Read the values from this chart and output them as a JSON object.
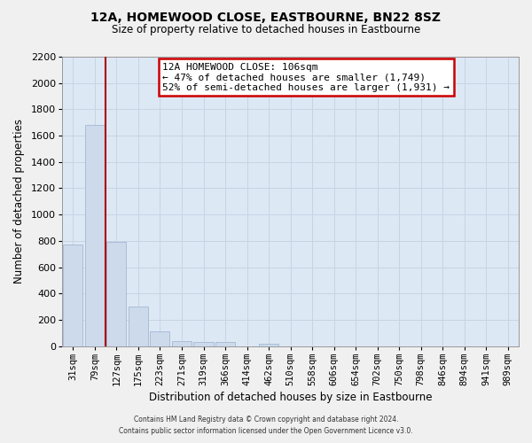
{
  "title": "12A, HOMEWOOD CLOSE, EASTBOURNE, BN22 8SZ",
  "subtitle": "Size of property relative to detached houses in Eastbourne",
  "xlabel": "Distribution of detached houses by size in Eastbourne",
  "ylabel": "Number of detached properties",
  "footer_line1": "Contains HM Land Registry data © Crown copyright and database right 2024.",
  "footer_line2": "Contains public sector information licensed under the Open Government Licence v3.0.",
  "bar_labels": [
    "31sqm",
    "79sqm",
    "127sqm",
    "175sqm",
    "223sqm",
    "271sqm",
    "319sqm",
    "366sqm",
    "414sqm",
    "462sqm",
    "510sqm",
    "558sqm",
    "606sqm",
    "654sqm",
    "702sqm",
    "750sqm",
    "798sqm",
    "846sqm",
    "894sqm",
    "941sqm",
    "989sqm"
  ],
  "bar_values": [
    775,
    1680,
    795,
    300,
    115,
    35,
    30,
    30,
    0,
    20,
    0,
    0,
    0,
    0,
    0,
    0,
    0,
    0,
    0,
    0,
    0
  ],
  "bar_color": "#ccdaeb",
  "bar_edge_color": "#aabdd8",
  "ylim": [
    0,
    2200
  ],
  "yticks": [
    0,
    200,
    400,
    600,
    800,
    1000,
    1200,
    1400,
    1600,
    1800,
    2000,
    2200
  ],
  "property_line_x": 1.5,
  "property_line_color": "#aa0000",
  "annotation_text_line1": "12A HOMEWOOD CLOSE: 106sqm",
  "annotation_text_line2": "← 47% of detached houses are smaller (1,749)",
  "annotation_text_line3": "52% of semi-detached houses are larger (1,931) →",
  "grid_color": "#c8d4e4",
  "background_color": "#dde8f5",
  "fig_background": "#f0f0f0"
}
